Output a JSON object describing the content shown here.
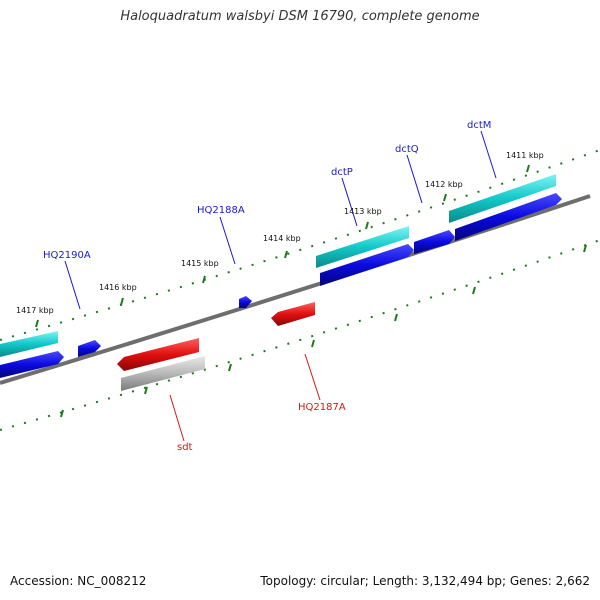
{
  "title": "Haloquadratum walsbyi DSM 16790, complete genome",
  "footer": {
    "accession": "Accession: NC_008212",
    "stats": "Topology: circular; Length: 3,132,494 bp; Genes: 2,662"
  },
  "kbp_labels": [
    "1411 kbp",
    "1412 kbp",
    "1413 kbp",
    "1414 kbp",
    "1415 kbp",
    "1416 kbp",
    "1417 kbp"
  ],
  "gene_labels": {
    "dctM": "dctM",
    "dctQ": "dctQ",
    "dctP": "dctP",
    "HQ2188A": "HQ2188A",
    "HQ2190A": "HQ2190A",
    "HQ2187A": "HQ2187A",
    "sdt": "sdt"
  },
  "colors": {
    "forward_cds": "#0a0ae0",
    "forward_gene": "#00d0d0",
    "reverse_cds": "#e01010",
    "reverse_gene": "#b0b0b0",
    "backbone": "#777777",
    "ticks": "#1a7a1a"
  }
}
